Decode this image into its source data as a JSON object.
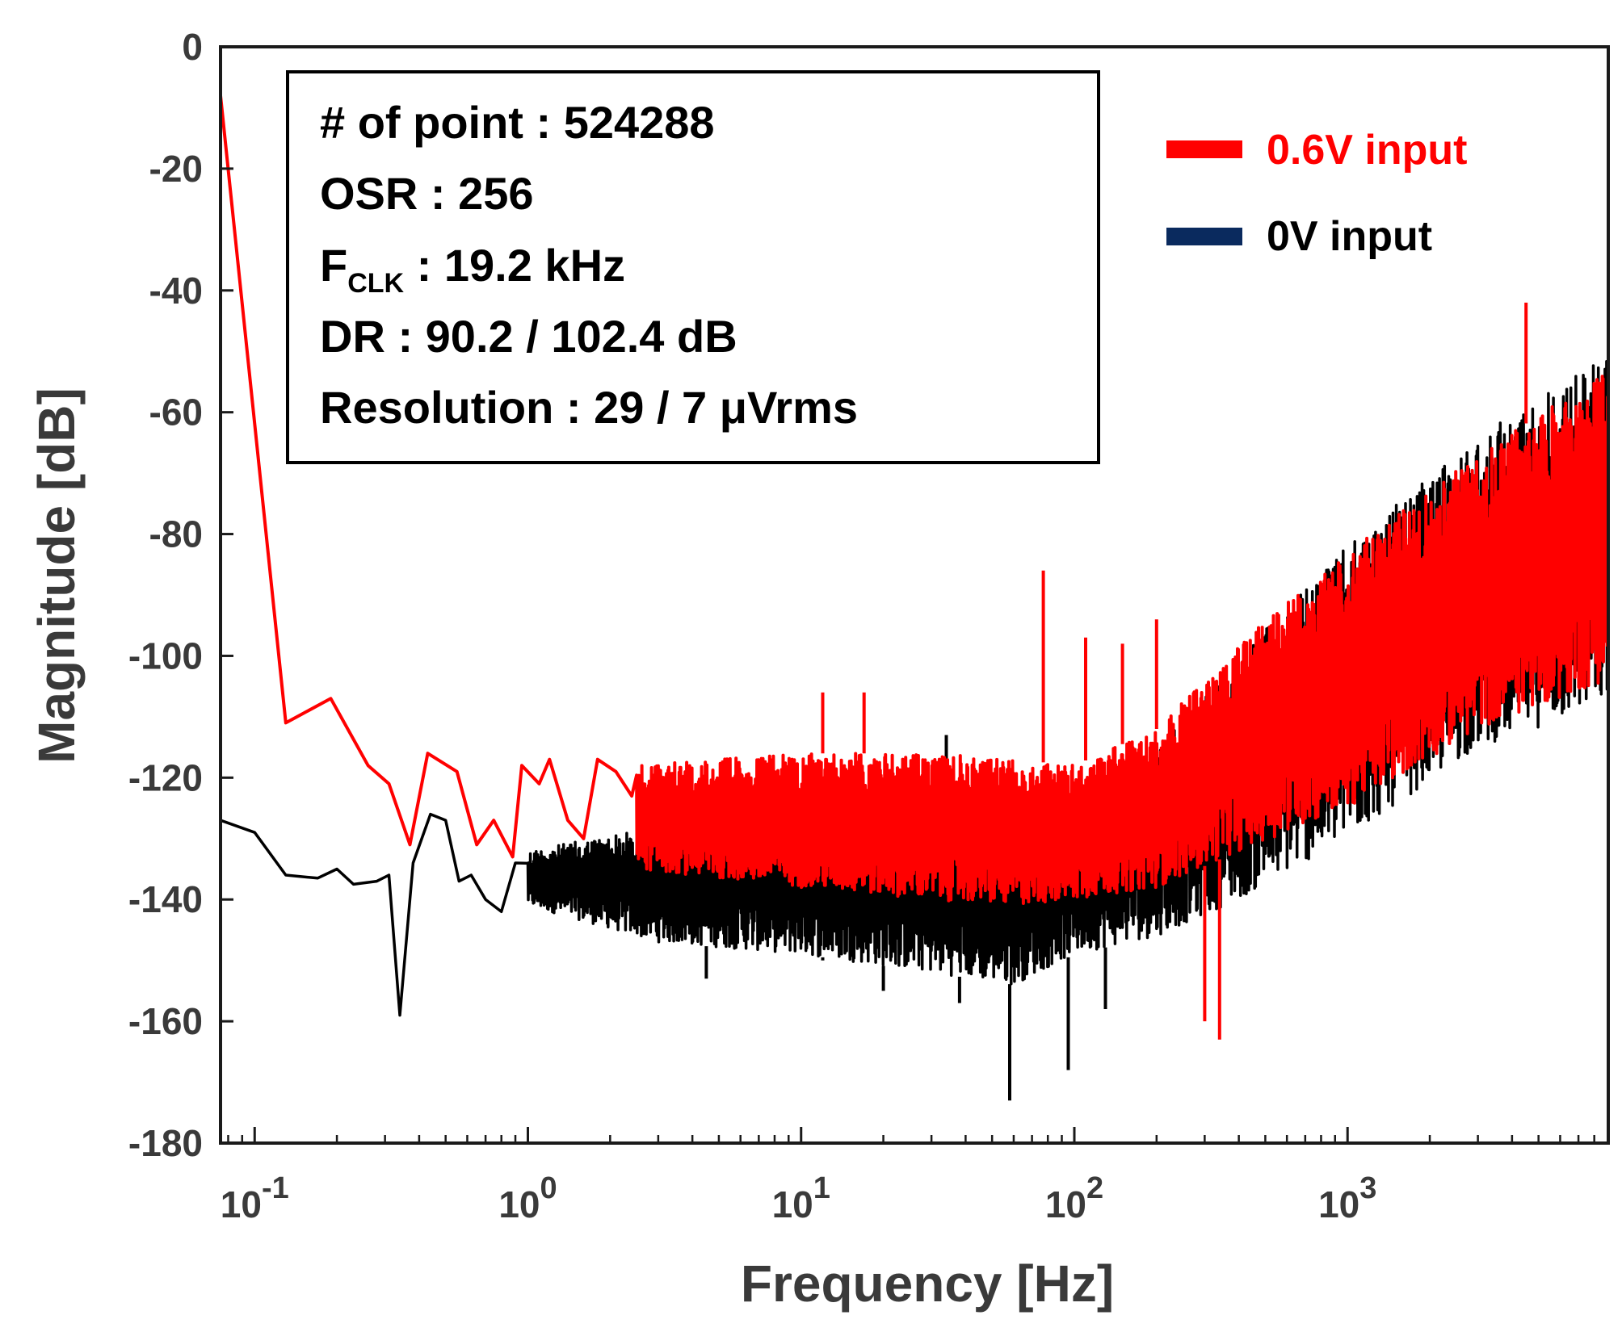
{
  "chart_data": {
    "type": "line",
    "xlabel": "Frequency [Hz]",
    "ylabel": "Magnitude [dB]",
    "x_scale": "log",
    "xlim": [
      0.075,
      9000
    ],
    "ylim": [
      -180,
      0
    ],
    "x_ticks": [
      {
        "value": 0.1,
        "base": "10",
        "exp": "-1"
      },
      {
        "value": 1,
        "base": "10",
        "exp": "0"
      },
      {
        "value": 10,
        "base": "10",
        "exp": "1"
      },
      {
        "value": 100,
        "base": "10",
        "exp": "2"
      },
      {
        "value": 1000,
        "base": "10",
        "exp": "3"
      }
    ],
    "y_ticks": [
      {
        "value": 0,
        "label": "0"
      },
      {
        "value": -20,
        "label": "-20"
      },
      {
        "value": -40,
        "label": "-40"
      },
      {
        "value": -60,
        "label": "-60"
      },
      {
        "value": -80,
        "label": "-80"
      },
      {
        "value": -100,
        "label": "-100"
      },
      {
        "value": -120,
        "label": "-120"
      },
      {
        "value": -140,
        "label": "-140"
      },
      {
        "value": -160,
        "label": "-160"
      },
      {
        "value": -180,
        "label": "-180"
      }
    ],
    "grid": false,
    "legend_position": "top-right",
    "series": [
      {
        "name": "0V input",
        "color": "#000000",
        "legend_color": "#0a2a5e",
        "low_freq_points": [
          [
            0.075,
            -127
          ],
          [
            0.1,
            -129
          ],
          [
            0.13,
            -136
          ],
          [
            0.17,
            -136.5
          ],
          [
            0.2,
            -135
          ],
          [
            0.23,
            -137.5
          ],
          [
            0.28,
            -137
          ],
          [
            0.31,
            -136
          ],
          [
            0.34,
            -159
          ],
          [
            0.38,
            -134
          ],
          [
            0.44,
            -126
          ],
          [
            0.5,
            -127
          ],
          [
            0.56,
            -137
          ],
          [
            0.62,
            -136
          ],
          [
            0.7,
            -140
          ],
          [
            0.8,
            -142
          ],
          [
            0.9,
            -134
          ]
        ],
        "envelope_points": [
          [
            1,
            [
              -132,
              -141
            ]
          ],
          [
            3,
            [
              -128,
              -147
            ]
          ],
          [
            10,
            [
              -125,
              -149
            ]
          ],
          [
            30,
            [
              -124,
              -152
            ]
          ],
          [
            60,
            [
              -124,
              -154
            ]
          ],
          [
            100,
            [
              -122,
              -149
            ]
          ],
          [
            200,
            [
              -115,
              -146
            ]
          ],
          [
            400,
            [
              -100,
              -140
            ]
          ],
          [
            1000,
            [
              -82,
              -130
            ]
          ],
          [
            3000,
            [
              -64,
              -115
            ]
          ],
          [
            9000,
            [
              -50,
              -108
            ]
          ]
        ],
        "spikes": [
          [
            4.5,
            -153
          ],
          [
            12,
            -150
          ],
          [
            20,
            -155
          ],
          [
            34,
            -113
          ],
          [
            38,
            -157
          ],
          [
            58,
            -173
          ],
          [
            80,
            -124
          ],
          [
            95,
            -168
          ],
          [
            130,
            -158
          ]
        ]
      },
      {
        "name": "0.6V input",
        "color": "#ff0000",
        "legend_color": "#ff0000",
        "low_freq_points": [
          [
            0.075,
            -8
          ],
          [
            0.13,
            -111
          ],
          [
            0.19,
            -107
          ],
          [
            0.26,
            -118
          ],
          [
            0.31,
            -121
          ],
          [
            0.37,
            -131
          ],
          [
            0.43,
            -116
          ],
          [
            0.55,
            -119
          ],
          [
            0.65,
            -131
          ],
          [
            0.75,
            -127
          ],
          [
            0.88,
            -133
          ],
          [
            0.95,
            -118
          ],
          [
            1.1,
            -121
          ],
          [
            1.2,
            -117
          ],
          [
            1.4,
            -127
          ],
          [
            1.6,
            -130
          ],
          [
            1.8,
            -117
          ],
          [
            2.1,
            -119
          ],
          [
            2.4,
            -123
          ]
        ],
        "envelope_points": [
          [
            2.5,
            [
              -118,
              -135
            ]
          ],
          [
            10,
            [
              -116,
              -138
            ]
          ],
          [
            30,
            [
              -116,
              -140
            ]
          ],
          [
            60,
            [
              -117,
              -141
            ]
          ],
          [
            100,
            [
              -118,
              -140
            ]
          ],
          [
            200,
            [
              -112,
              -138
            ]
          ],
          [
            400,
            [
              -98,
              -132
            ]
          ],
          [
            1000,
            [
              -83,
              -125
            ]
          ],
          [
            3000,
            [
              -67,
              -112
            ]
          ],
          [
            9000,
            [
              -53,
              -104
            ]
          ]
        ],
        "spikes": [
          [
            12,
            -106
          ],
          [
            17,
            -106
          ],
          [
            77,
            -86
          ],
          [
            110,
            -97
          ],
          [
            150,
            -98
          ],
          [
            200,
            -94
          ],
          [
            300,
            -160
          ],
          [
            340,
            -163
          ],
          [
            4500,
            -42
          ]
        ]
      }
    ]
  },
  "info_box": {
    "lines": [
      {
        "main": "# of point : 524288"
      },
      {
        "main": "OSR : 256"
      },
      {
        "prefix": "F",
        "sub": "CLK",
        "rest": " : 19.2 kHz"
      },
      {
        "main": "DR : 90.2 / 102.4 dB"
      },
      {
        "main": "Resolution : 29 / 7 μVrms"
      }
    ]
  },
  "legend": {
    "items": [
      {
        "label": "0.6V input",
        "color": "#ff0000",
        "text_color": "#ff0000"
      },
      {
        "label": "0V input",
        "color": "#0a2a5e",
        "text_color": "#000000"
      }
    ]
  }
}
